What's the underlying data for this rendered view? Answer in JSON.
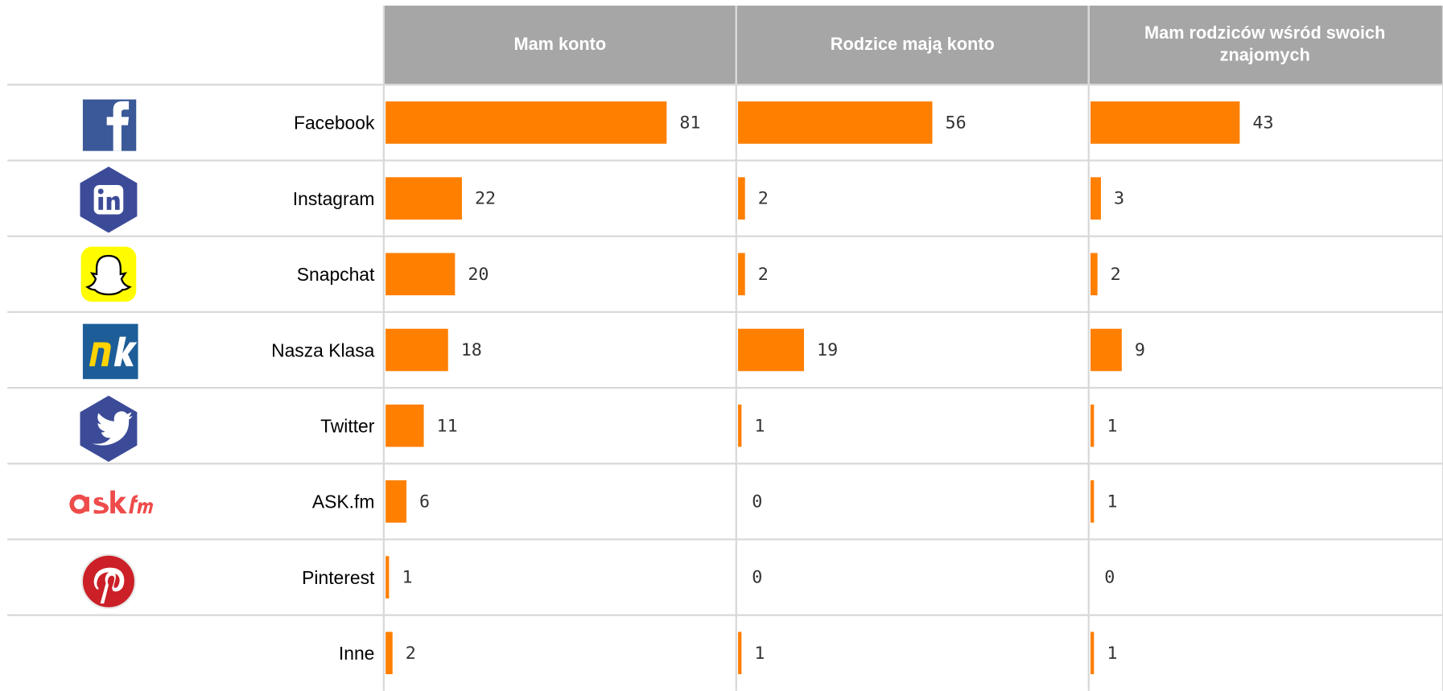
{
  "chart_data": {
    "type": "bar",
    "orientation": "horizontal",
    "categories": [
      "Facebook",
      "Instagram",
      "Snapchat",
      "Nasza Klasa",
      "Twitter",
      "ASK.fm",
      "Pinterest",
      "Inne"
    ],
    "series": [
      {
        "name": "Mam konto",
        "color": "#ff7f00",
        "values": [
          81,
          22,
          20,
          18,
          11,
          6,
          1,
          2
        ]
      },
      {
        "name": "Rodzice mają konto",
        "color": "#ff7f00",
        "values": [
          56,
          2,
          2,
          19,
          1,
          0,
          0,
          1
        ]
      },
      {
        "name": "Mam rodziców wśród swoich znajomych",
        "color": "#ff7f00",
        "values": [
          43,
          3,
          2,
          9,
          1,
          1,
          0,
          1
        ]
      }
    ]
  }
}
